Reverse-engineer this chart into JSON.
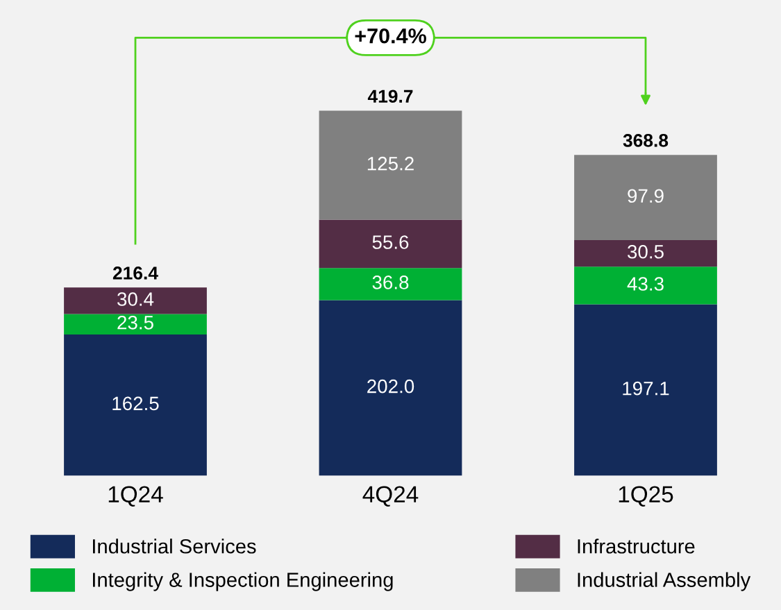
{
  "chart_data": {
    "type": "bar",
    "stacked": true,
    "categories": [
      "1Q24",
      "4Q24",
      "1Q25"
    ],
    "series": [
      {
        "name": "Industrial Services",
        "color": "#142b5a",
        "values": [
          162.5,
          202.0,
          197.1
        ],
        "value_labels": [
          "162.5",
          "202.0",
          "197.1"
        ]
      },
      {
        "name": "Integrity & Inspection Engineering",
        "color": "#00b034",
        "values": [
          23.5,
          36.8,
          43.3
        ],
        "value_labels": [
          "23.5",
          "36.8",
          "43.3"
        ]
      },
      {
        "name": "Infrastructure",
        "color": "#532d45",
        "values": [
          30.4,
          55.6,
          30.5
        ],
        "value_labels": [
          "30.4",
          "55.6",
          "30.5"
        ]
      },
      {
        "name": "Industrial Assembly",
        "color": "#808080",
        "values": [
          null,
          125.2,
          97.9
        ],
        "value_labels": [
          null,
          "125.2",
          "97.9"
        ]
      }
    ],
    "totals": [
      "216.4",
      "419.7",
      "368.8"
    ],
    "annotations": [
      "+70.4%"
    ],
    "legend": "bottom",
    "grid": false
  }
}
